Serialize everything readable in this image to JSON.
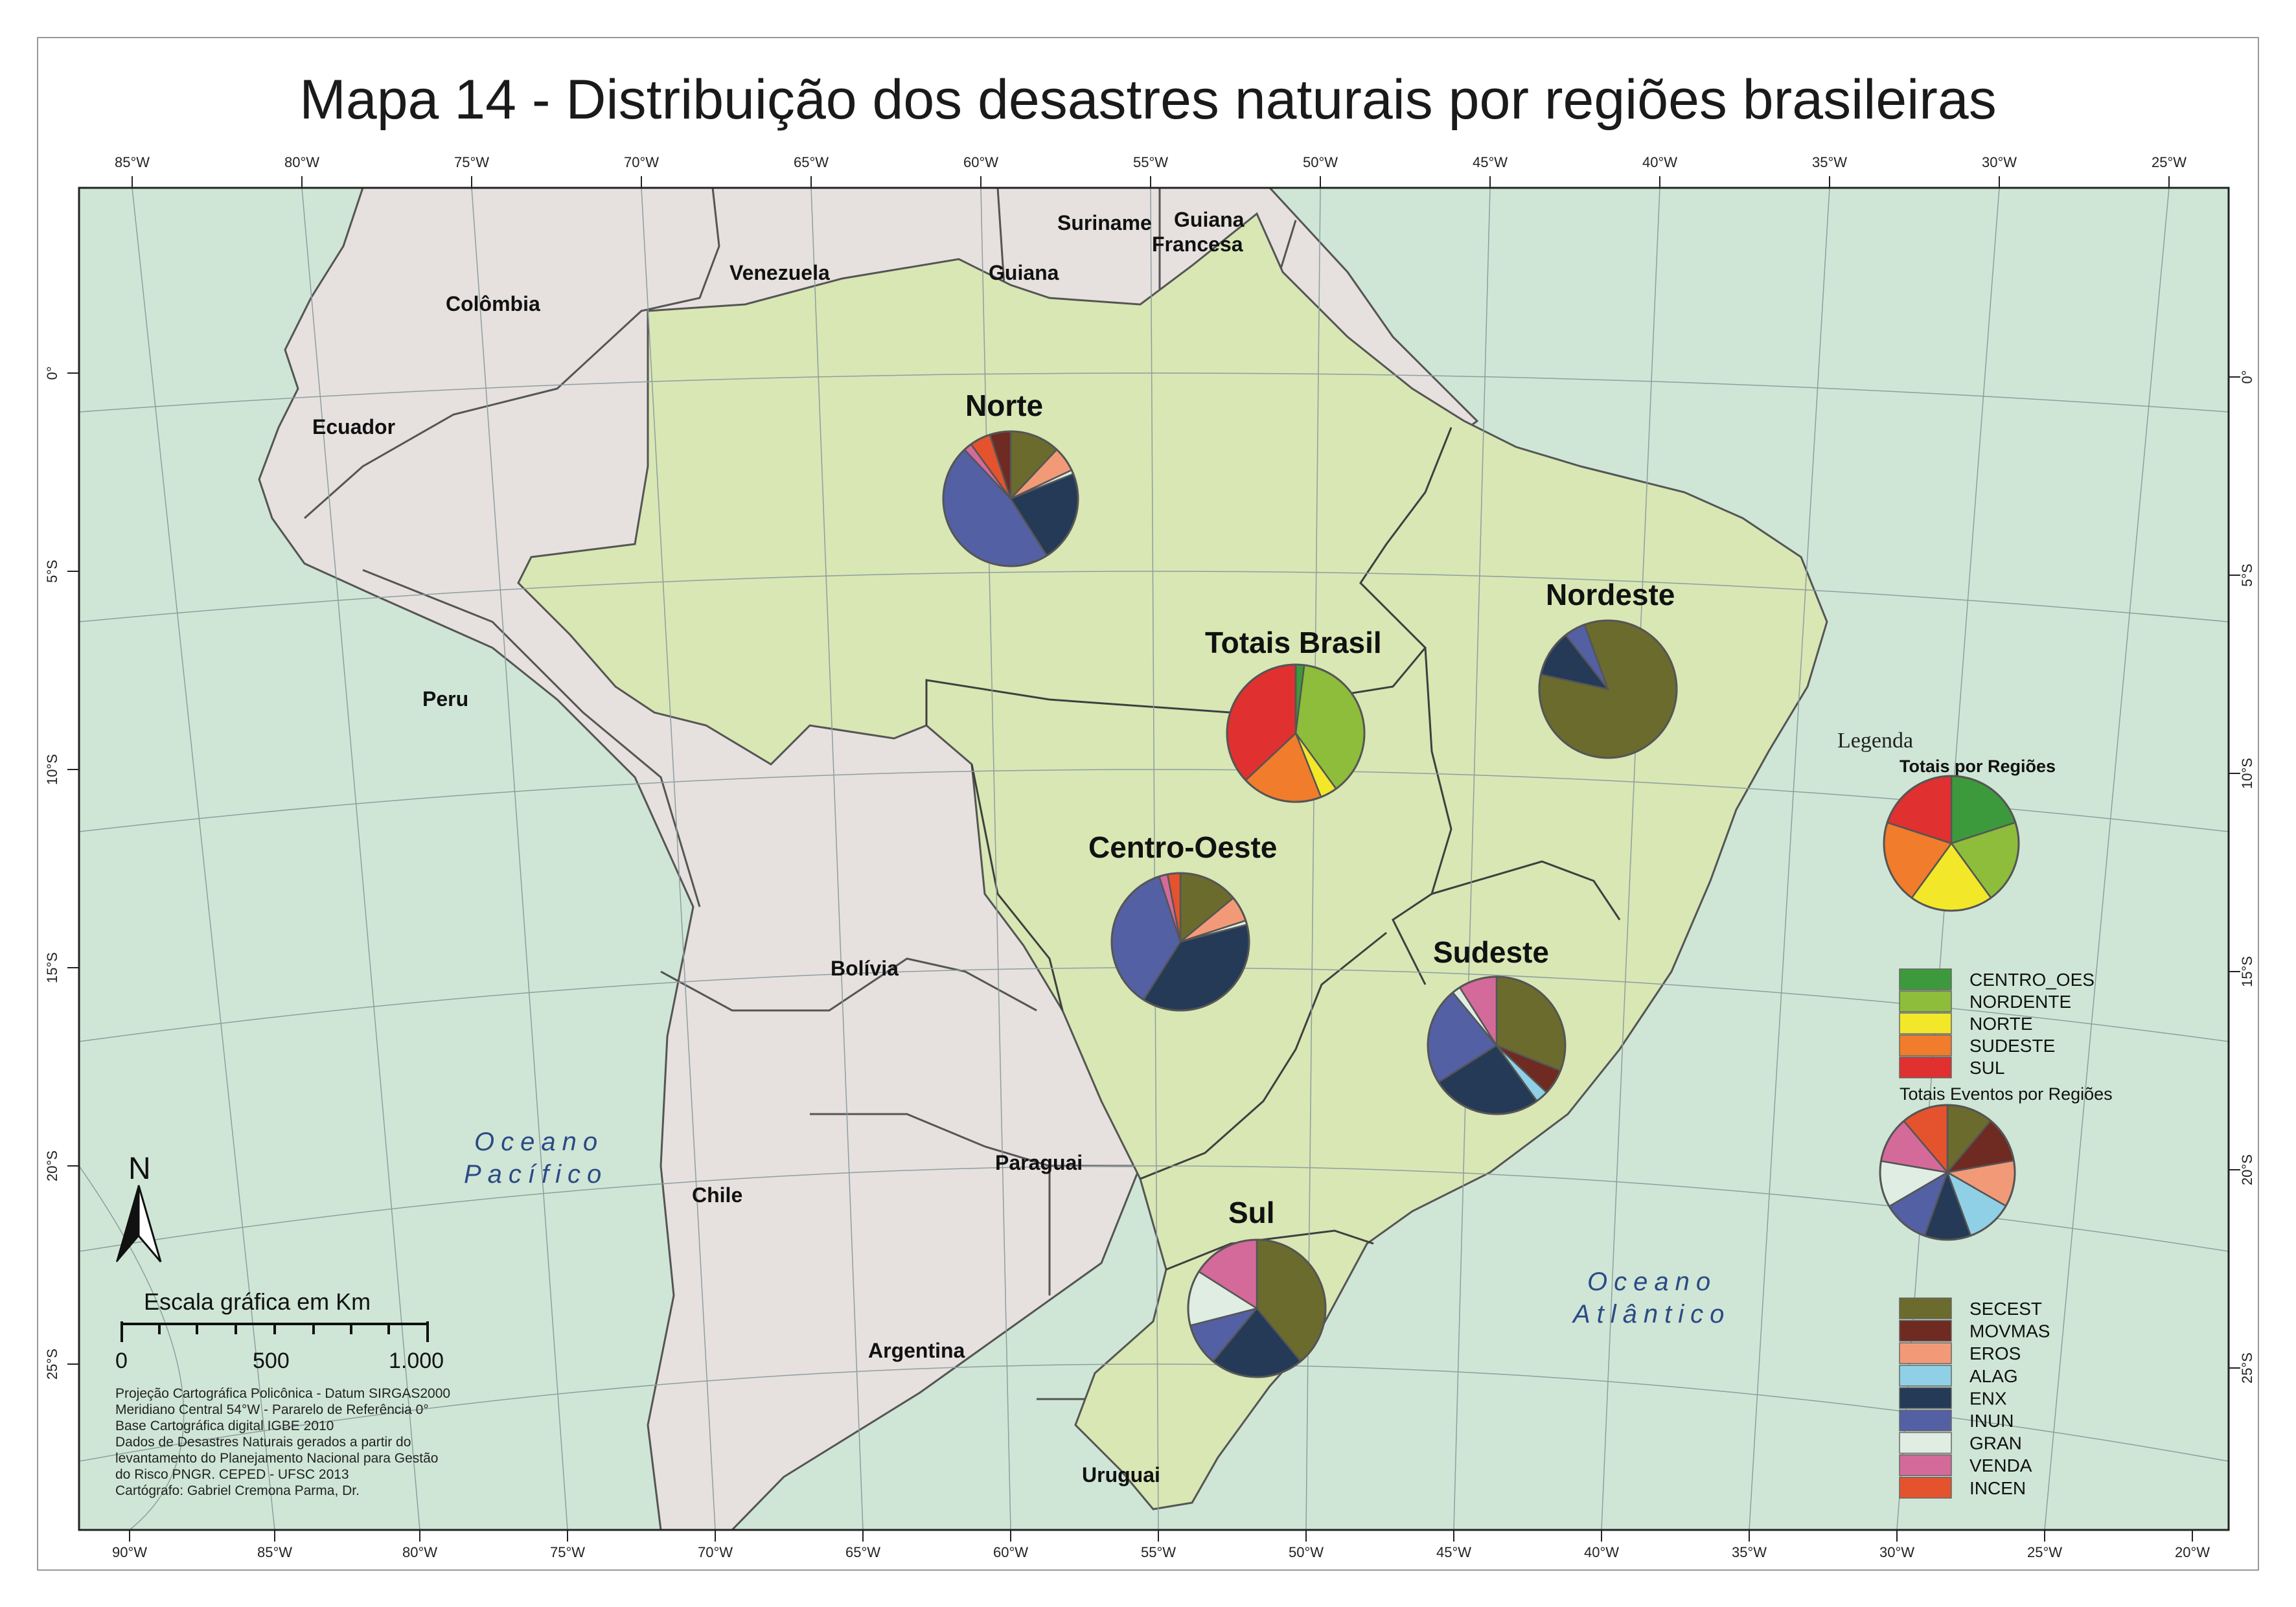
{
  "title": "Mapa 14 - Distribuição dos desastres naturais por regiões brasileiras",
  "colors": {
    "ocean": "#cfe6d6",
    "brazil": "#d8e7b4",
    "neighbors": "#e6e0df",
    "border": "#555555"
  },
  "axes": {
    "top_lon_labels": [
      "85°W",
      "80°W",
      "75°W",
      "70°W",
      "65°W",
      "60°W",
      "55°W",
      "50°W",
      "45°W",
      "40°W",
      "35°W",
      "30°W",
      "25°W"
    ],
    "bottom_lon_labels": [
      "90°W",
      "85°W",
      "80°W",
      "75°W",
      "70°W",
      "65°W",
      "60°W",
      "55°W",
      "50°W",
      "45°W",
      "40°W",
      "35°W",
      "30°W",
      "25°W",
      "20°W"
    ],
    "lat_labels": [
      "0°",
      "5°S",
      "10°S",
      "15°S",
      "20°S",
      "25°S"
    ]
  },
  "countries": {
    "suriname": "Suriname",
    "guiana_francesa_1": "Guiana",
    "guiana_francesa_2": "Francesa",
    "venezuela": "Venezuela",
    "guiana": "Guiana",
    "colombia": "Colômbia",
    "ecuador": "Ecuador",
    "peru": "Peru",
    "bolivia": "Bolívia",
    "paraguai": "Paraguai",
    "chile": "Chile",
    "argentina": "Argentina",
    "uruguai": "Uruguai"
  },
  "oceans": {
    "pacifico_1": "Oceano",
    "pacifico_2": "Pacífico",
    "atlantico_1": "Oceano",
    "atlantico_2": "Atlântico"
  },
  "regions": {
    "norte": "Norte",
    "nordeste": "Nordeste",
    "totais": "Totais Brasil",
    "centro_oeste": "Centro-Oeste",
    "sudeste": "Sudeste",
    "sul": "Sul"
  },
  "north_arrow": "N",
  "scale": {
    "title": "Escala gráfica em Km",
    "labels": [
      "0",
      "500",
      "1.000"
    ]
  },
  "notes": [
    "Projeção Cartográfica Policônica - Datum SIRGAS2000",
    "Meridiano Central 54°W - Pararelo de Referência 0°",
    "Base Cartográfica digital IGBE 2010",
    "Dados de Desastres Naturais gerados a partir do",
    "levantamento do Planejamento Nacional para Gestão",
    "do Risco PNGR. CEPED - UFSC 2013",
    "Cartógrafo: Gabriel Cremona Parma, Dr."
  ],
  "legend": {
    "title": "Legenda",
    "regions_title": "Totais por Regiões",
    "regions": [
      {
        "label": "CENTRO_OES",
        "color": "#3c9a3c"
      },
      {
        "label": "NORDENTE",
        "color": "#8dbd3a"
      },
      {
        "label": "NORTE",
        "color": "#f3e72a"
      },
      {
        "label": "SUDESTE",
        "color": "#f07c2c"
      },
      {
        "label": "SUL",
        "color": "#e03030"
      }
    ],
    "events_title": "Totais Eventos por Regiões",
    "events": [
      {
        "label": "SECEST",
        "color": "#6b6b2e"
      },
      {
        "label": "MOVMAS",
        "color": "#6f2a22"
      },
      {
        "label": "EROS",
        "color": "#f29a78"
      },
      {
        "label": "ALAG",
        "color": "#8fd0e6"
      },
      {
        "label": "ENX",
        "color": "#243a56"
      },
      {
        "label": "INUN",
        "color": "#5460a4"
      },
      {
        "label": "GRAN",
        "color": "#dfede2"
      },
      {
        "label": "VENDA",
        "color": "#d46a9a"
      },
      {
        "label": "INCEN",
        "color": "#e4532e"
      }
    ]
  },
  "chart_data": [
    {
      "type": "pie",
      "name": "Norte",
      "unit": "percent",
      "slices": [
        [
          "SECEST",
          12
        ],
        [
          "EROS",
          6
        ],
        [
          "GRAN",
          1
        ],
        [
          "ENX",
          22
        ],
        [
          "INUN",
          47
        ],
        [
          "VENDA",
          2
        ],
        [
          "INCEN",
          5
        ],
        [
          "MOVMAS",
          5
        ]
      ]
    },
    {
      "type": "pie",
      "name": "Nordeste",
      "unit": "percent",
      "slices": [
        [
          "SECEST",
          84
        ],
        [
          "ENX",
          11
        ],
        [
          "INUN",
          5
        ]
      ]
    },
    {
      "type": "pie",
      "name": "Totais Brasil",
      "unit": "percent",
      "slices": [
        [
          "CENTRO_OES",
          2
        ],
        [
          "NORDENTE",
          38
        ],
        [
          "NORTE",
          4
        ],
        [
          "SUDESTE",
          19
        ],
        [
          "SUL",
          37
        ]
      ]
    },
    {
      "type": "pie",
      "name": "Centro-Oeste",
      "unit": "percent",
      "slices": [
        [
          "SECEST",
          14
        ],
        [
          "EROS",
          6
        ],
        [
          "GRAN",
          1
        ],
        [
          "ENX",
          38
        ],
        [
          "INUN",
          36
        ],
        [
          "VENDA",
          2
        ],
        [
          "INCEN",
          3
        ]
      ]
    },
    {
      "type": "pie",
      "name": "Sudeste",
      "unit": "percent",
      "slices": [
        [
          "SECEST",
          31
        ],
        [
          "MOVMAS",
          6
        ],
        [
          "ALAG",
          3
        ],
        [
          "ENX",
          26
        ],
        [
          "INUN",
          23
        ],
        [
          "GRAN",
          2
        ],
        [
          "VENDA",
          9
        ]
      ]
    },
    {
      "type": "pie",
      "name": "Sul",
      "unit": "percent",
      "slices": [
        [
          "SECEST",
          39
        ],
        [
          "ENX",
          22
        ],
        [
          "INUN",
          10
        ],
        [
          "GRAN",
          13
        ],
        [
          "VENDA",
          16
        ]
      ]
    },
    {
      "type": "pie",
      "name": "Totais por Regiões",
      "unit": "percent",
      "slices": [
        [
          "CENTRO_OES",
          20
        ],
        [
          "NORDENTE",
          20
        ],
        [
          "NORTE",
          20
        ],
        [
          "SUDESTE",
          20
        ],
        [
          "SUL",
          20
        ]
      ]
    },
    {
      "type": "pie",
      "name": "Totais Eventos por Regiões",
      "unit": "percent",
      "slices": [
        [
          "SECEST",
          11.1
        ],
        [
          "MOVMAS",
          11.1
        ],
        [
          "EROS",
          11.1
        ],
        [
          "ALAG",
          11.1
        ],
        [
          "ENX",
          11.1
        ],
        [
          "INUN",
          11.1
        ],
        [
          "GRAN",
          11.1
        ],
        [
          "VENDA",
          11.1
        ],
        [
          "INCEN",
          11.2
        ]
      ]
    }
  ]
}
